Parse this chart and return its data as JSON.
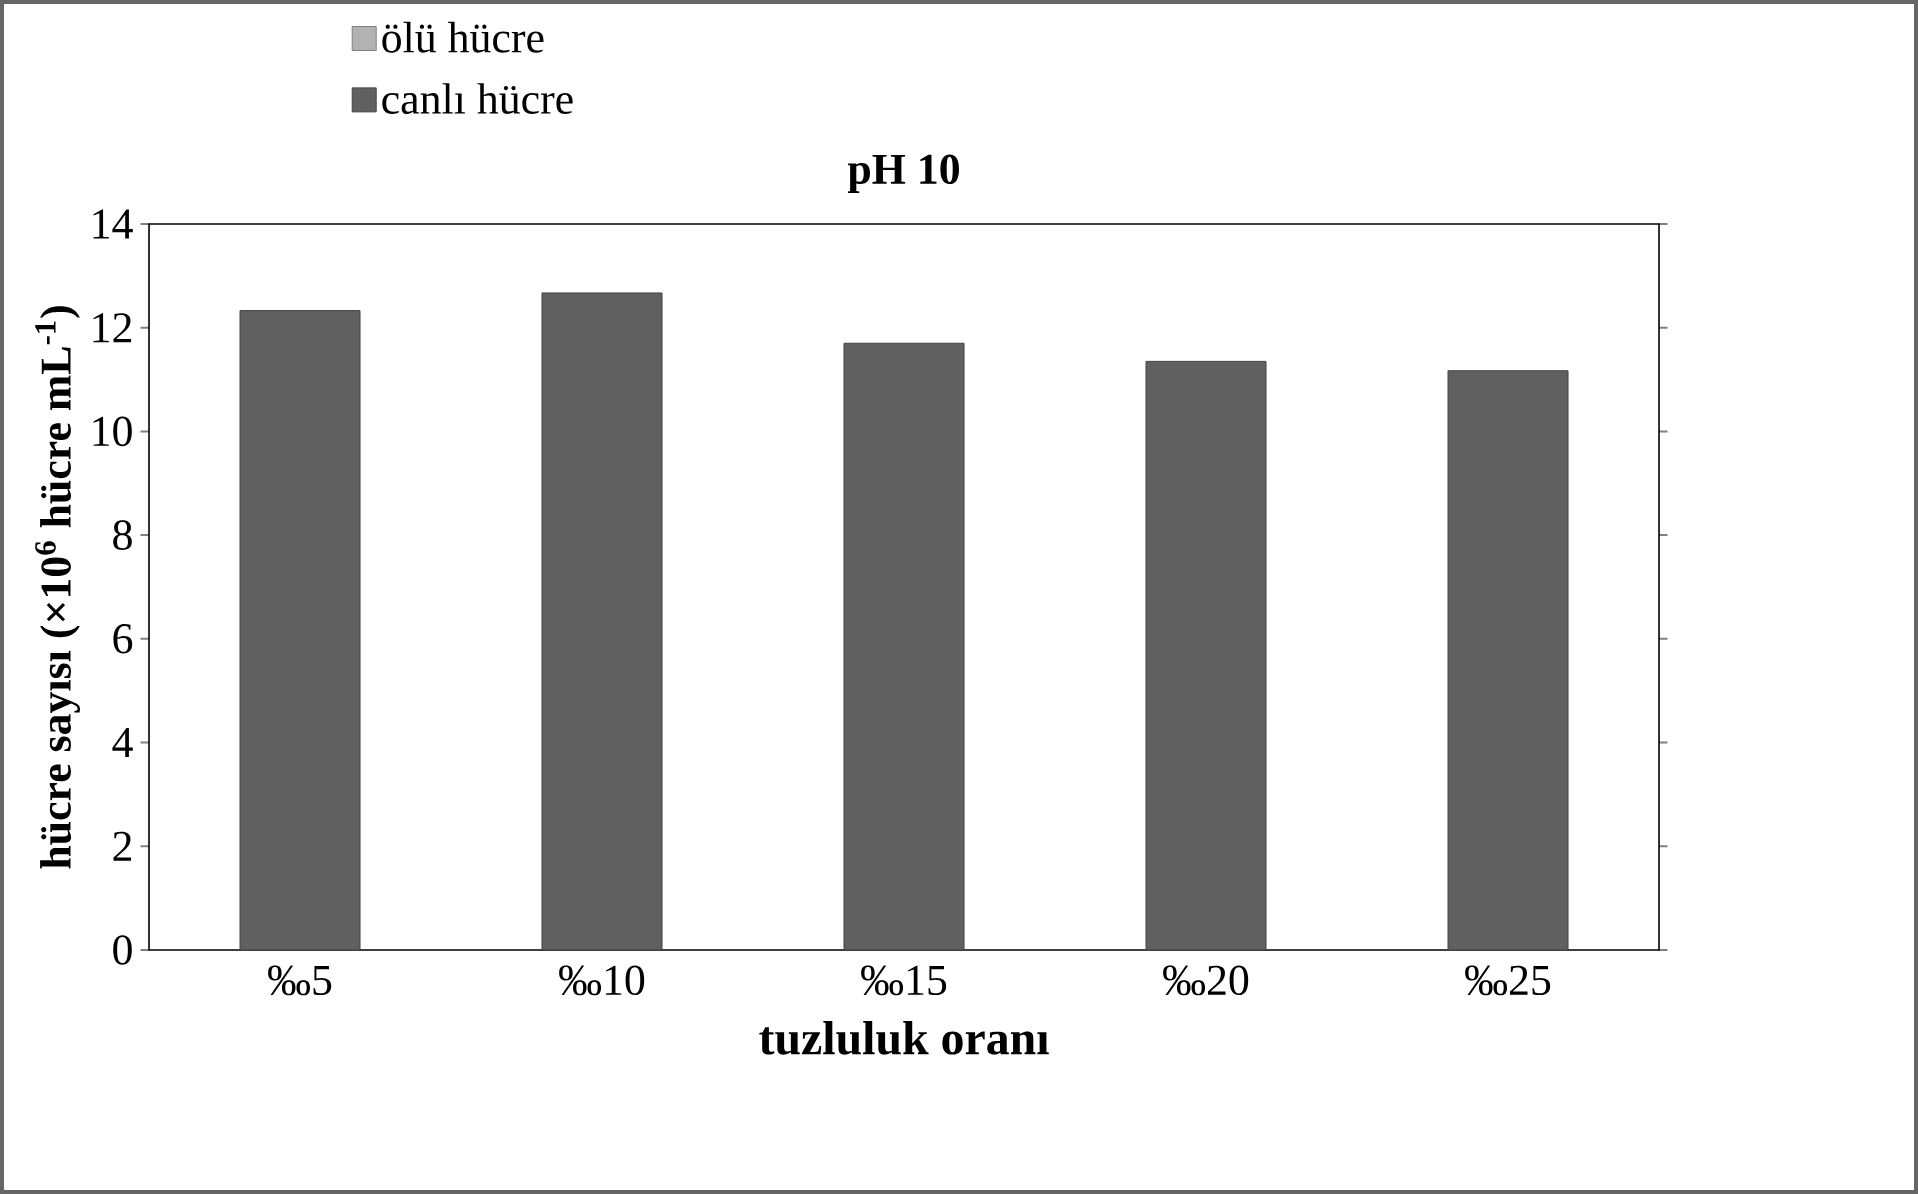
{
  "chart_data": {
    "type": "bar",
    "title": "pH 10",
    "xlabel": "tuzluluk oranı",
    "ylabel": "hücre sayısı  (×10$^{6}$ hücre mL$^{-1}$)",
    "categories": [
      "‰5",
      "‰10",
      "‰15",
      "‰20",
      "‰25"
    ],
    "series": [
      {
        "name": "canlı hücre",
        "color": "#606060",
        "values": [
          12.33,
          12.67,
          11.7,
          11.35,
          11.17
        ]
      },
      {
        "name": "ölü hücre",
        "color": "#b2b2b2",
        "values": [
          0,
          0,
          0,
          0,
          0
        ]
      }
    ],
    "stacked": true,
    "ylim": [
      0,
      14
    ],
    "yticks": [
      0,
      2,
      4,
      6,
      8,
      10,
      12,
      14
    ],
    "grid": false,
    "legend": "top left"
  }
}
